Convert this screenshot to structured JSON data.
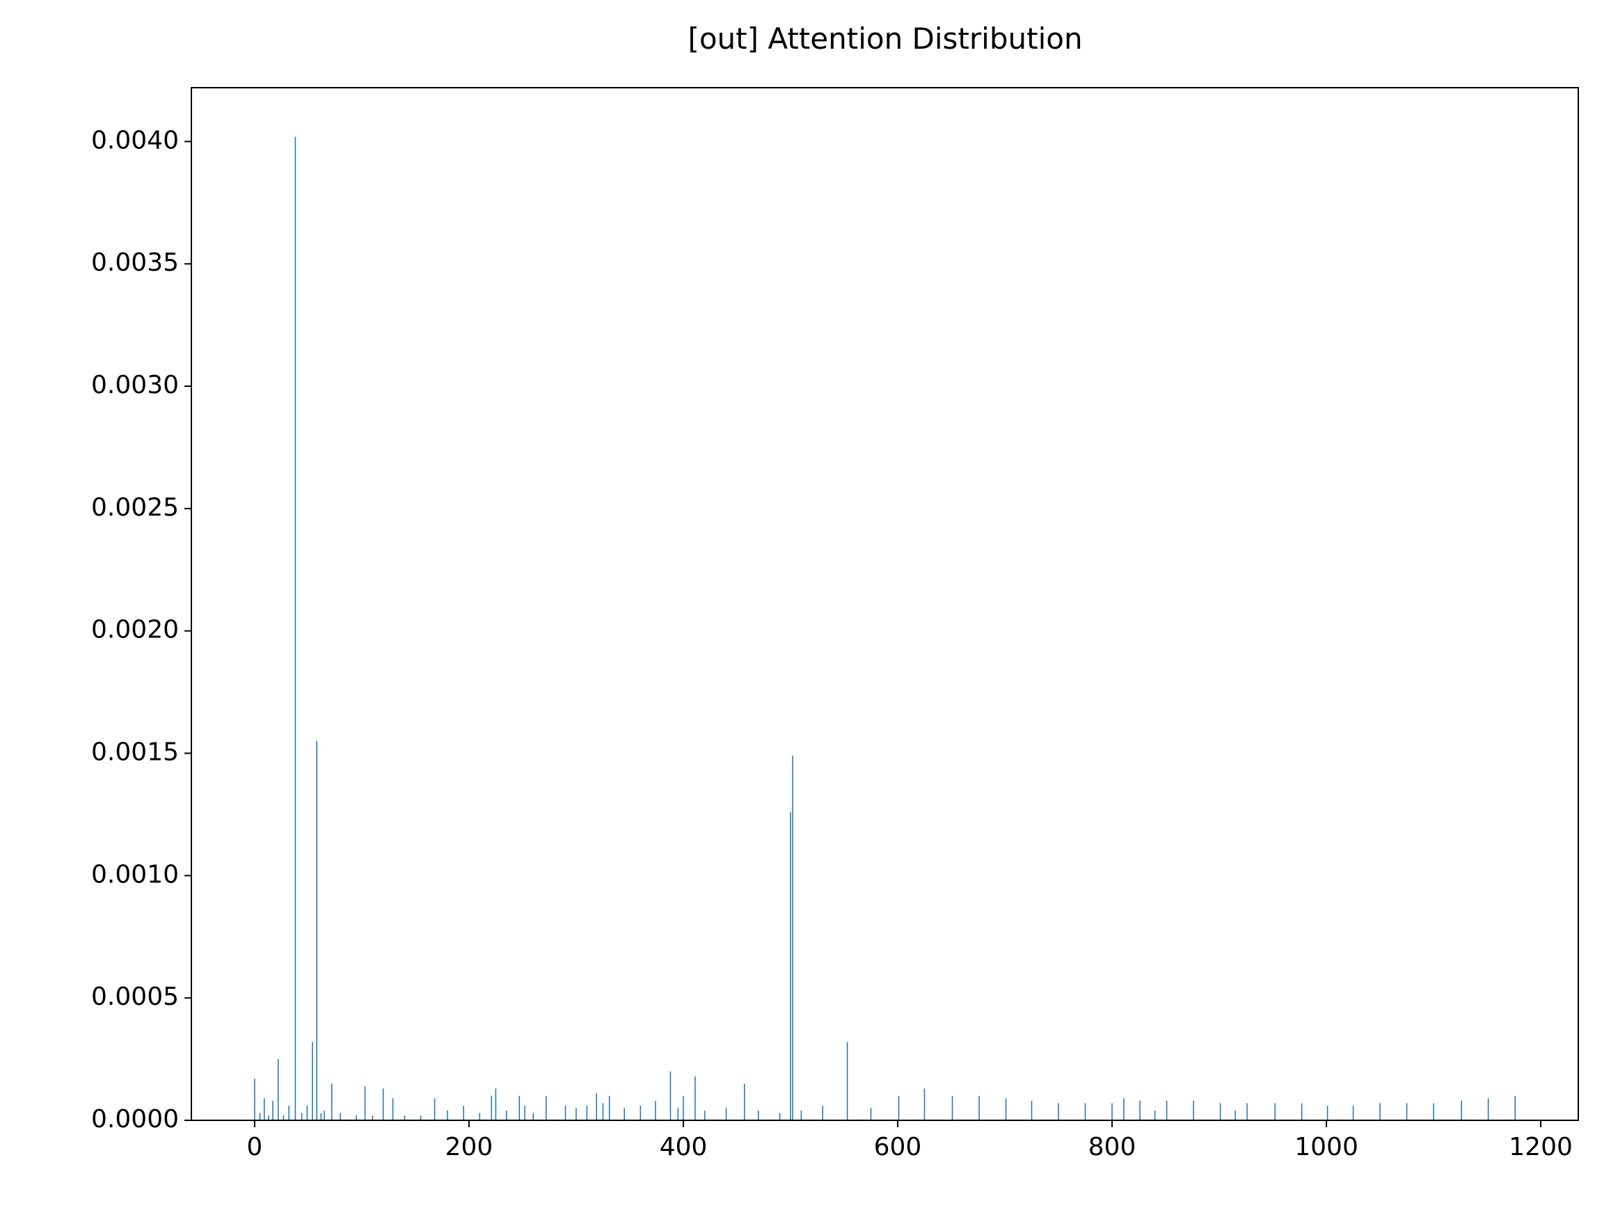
{
  "chart_data": {
    "type": "bar",
    "title": "[out] Attention Distribution",
    "color": "#1f77b4",
    "x": [
      0,
      5,
      9,
      13,
      17,
      22,
      27,
      32,
      38,
      44,
      49,
      54,
      58,
      62,
      65,
      72,
      80,
      95,
      103,
      110,
      120,
      129,
      140,
      155,
      168,
      180,
      195,
      210,
      221,
      225,
      235,
      247,
      252,
      260,
      272,
      290,
      300,
      310,
      319,
      325,
      331,
      345,
      360,
      374,
      388,
      395,
      400,
      411,
      420,
      440,
      457,
      470,
      490,
      500,
      502,
      510,
      530,
      553,
      575,
      601,
      625,
      651,
      676,
      701,
      725,
      750,
      775,
      800,
      811,
      826,
      840,
      851,
      876,
      901,
      915,
      926,
      952,
      977,
      1001,
      1025,
      1050,
      1075,
      1100,
      1126,
      1151,
      1176
    ],
    "values": [
      0.00017,
      3e-05,
      9e-05,
      2e-05,
      8e-05,
      0.00025,
      2e-05,
      6e-05,
      0.00402,
      3e-05,
      6e-05,
      0.00032,
      0.00155,
      3e-05,
      4e-05,
      0.00015,
      3e-05,
      2e-05,
      0.00014,
      2e-05,
      0.00013,
      9e-05,
      2e-05,
      2e-05,
      9e-05,
      4e-05,
      6e-05,
      3e-05,
      0.0001,
      0.00013,
      4e-05,
      0.0001,
      6e-05,
      3e-05,
      0.0001,
      6e-05,
      5e-05,
      6e-05,
      0.00011,
      7e-05,
      0.0001,
      5e-05,
      6e-05,
      8e-05,
      0.0002,
      5e-05,
      0.0001,
      0.00018,
      4e-05,
      5e-05,
      0.00015,
      4e-05,
      3e-05,
      0.00126,
      0.00149,
      4e-05,
      6e-05,
      0.00032,
      5e-05,
      0.0001,
      0.00013,
      0.0001,
      0.0001,
      9e-05,
      8e-05,
      7e-05,
      7e-05,
      7e-05,
      9e-05,
      8e-05,
      4e-05,
      8e-05,
      8e-05,
      7e-05,
      4e-05,
      7e-05,
      7e-05,
      7e-05,
      6e-05,
      6e-05,
      7e-05,
      7e-05,
      7e-05,
      8e-05,
      9e-05,
      0.0001
    ],
    "xlim": [
      -59,
      1235
    ],
    "xticks": [
      0,
      200,
      400,
      600,
      800,
      1000,
      1200
    ],
    "ylim": [
      0,
      0.00422
    ],
    "yticks": [
      {
        "value": 0,
        "label": "0.0000"
      },
      {
        "value": 0.0005,
        "label": "0.0005"
      },
      {
        "value": 0.001,
        "label": "0.0010"
      },
      {
        "value": 0.0015,
        "label": "0.0015"
      },
      {
        "value": 0.002,
        "label": "0.0020"
      },
      {
        "value": 0.0025,
        "label": "0.0025"
      },
      {
        "value": 0.003,
        "label": "0.0030"
      },
      {
        "value": 0.0035,
        "label": "0.0035"
      },
      {
        "value": 0.004,
        "label": "0.0040"
      }
    ]
  }
}
